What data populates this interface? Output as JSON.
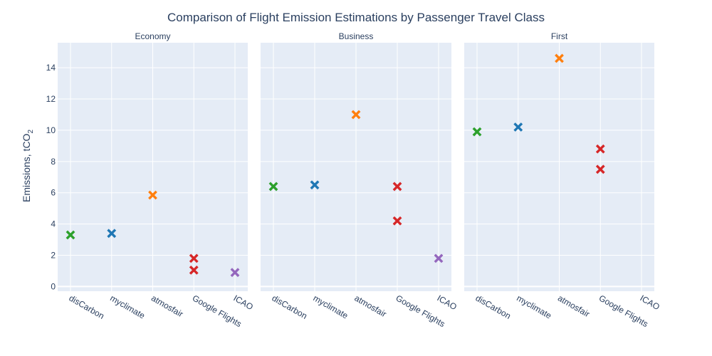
{
  "chart_data": {
    "type": "scatter",
    "title": "Comparison of Flight Emission Estimations by Passenger Travel Class",
    "ylabel": "Emissions, tCO",
    "ylabel_subscript": "2",
    "ylim": [
      -0.3,
      15.6
    ],
    "yticks": [
      0,
      2,
      4,
      6,
      8,
      10,
      12,
      14
    ],
    "categories": [
      "disCarbon",
      "myclimate",
      "atmosfair",
      "Google Flights",
      "ICAO"
    ],
    "marker": "x",
    "colors": {
      "disCarbon": "#2ca02c",
      "myclimate": "#1f77b4",
      "atmosfair": "#ff7f0e",
      "Google Flights": "#d62728",
      "ICAO": "#9467bd"
    },
    "facets": [
      {
        "name": "Economy",
        "points": [
          {
            "x": "disCarbon",
            "y": 3.3
          },
          {
            "x": "myclimate",
            "y": 3.4
          },
          {
            "x": "atmosfair",
            "y": 5.85
          },
          {
            "x": "Google Flights",
            "y": 1.8
          },
          {
            "x": "Google Flights",
            "y": 1.05
          },
          {
            "x": "ICAO",
            "y": 0.9
          }
        ]
      },
      {
        "name": "Business",
        "points": [
          {
            "x": "disCarbon",
            "y": 6.4
          },
          {
            "x": "myclimate",
            "y": 6.5
          },
          {
            "x": "atmosfair",
            "y": 11.0
          },
          {
            "x": "Google Flights",
            "y": 6.4
          },
          {
            "x": "Google Flights",
            "y": 4.2
          },
          {
            "x": "ICAO",
            "y": 1.8
          }
        ]
      },
      {
        "name": "First",
        "points": [
          {
            "x": "disCarbon",
            "y": 9.9
          },
          {
            "x": "myclimate",
            "y": 10.2
          },
          {
            "x": "atmosfair",
            "y": 14.6
          },
          {
            "x": "Google Flights",
            "y": 8.8
          },
          {
            "x": "Google Flights",
            "y": 7.5
          }
        ]
      }
    ],
    "grid": true,
    "legend": "none"
  }
}
